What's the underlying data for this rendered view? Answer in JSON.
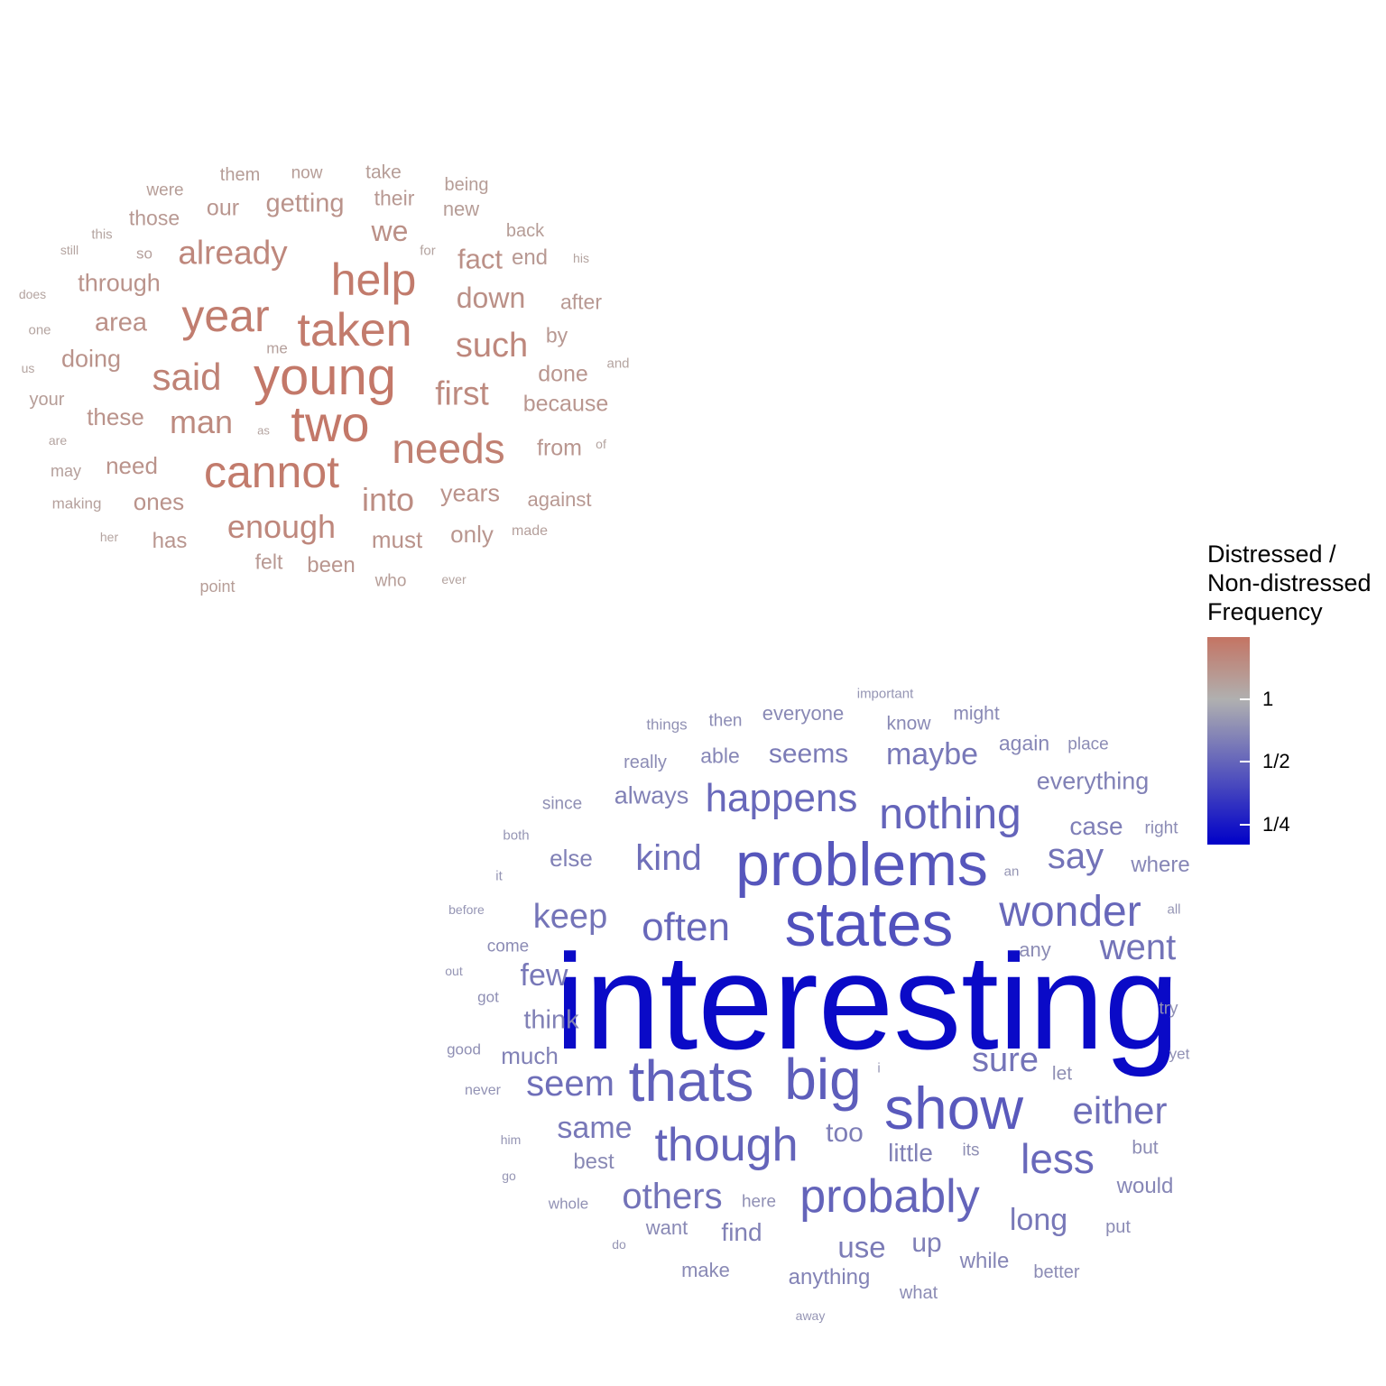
{
  "chart_data": {
    "type": "wordcloud",
    "legend": {
      "title_lines": [
        "Distressed /",
        "Non-distressed",
        "Frequency"
      ],
      "ticks": [
        {
          "label": "1",
          "value": 1
        },
        {
          "label": "1/2",
          "value": 0.5
        },
        {
          "label": "1/4",
          "value": 0.25
        }
      ],
      "range": [
        0.2,
        2.0
      ],
      "scale": "log2",
      "colors": {
        "high": "#c47463",
        "mid": "#b0b0b0",
        "low": "#0000c8"
      },
      "placement": "right"
    },
    "clouds": [
      {
        "group": "distressed",
        "words": [
          {
            "text": "young",
            "ratio": 1.9
          },
          {
            "text": "two",
            "ratio": 1.9
          },
          {
            "text": "cannot",
            "ratio": 1.85
          },
          {
            "text": "taken",
            "ratio": 1.85
          },
          {
            "text": "help",
            "ratio": 1.85
          },
          {
            "text": "year",
            "ratio": 1.8
          },
          {
            "text": "needs",
            "ratio": 1.75
          },
          {
            "text": "said",
            "ratio": 1.7
          },
          {
            "text": "already",
            "ratio": 1.6
          },
          {
            "text": "enough",
            "ratio": 1.6
          },
          {
            "text": "such",
            "ratio": 1.6
          },
          {
            "text": "man",
            "ratio": 1.55
          },
          {
            "text": "first",
            "ratio": 1.55
          },
          {
            "text": "into",
            "ratio": 1.5
          },
          {
            "text": "we",
            "ratio": 1.45
          },
          {
            "text": "fact",
            "ratio": 1.45
          },
          {
            "text": "down",
            "ratio": 1.45
          },
          {
            "text": "area",
            "ratio": 1.45
          },
          {
            "text": "getting",
            "ratio": 1.4
          },
          {
            "text": "through",
            "ratio": 1.4
          },
          {
            "text": "doing",
            "ratio": 1.4
          },
          {
            "text": "these",
            "ratio": 1.4
          },
          {
            "text": "need",
            "ratio": 1.4
          },
          {
            "text": "ones",
            "ratio": 1.4
          },
          {
            "text": "years",
            "ratio": 1.4
          },
          {
            "text": "must",
            "ratio": 1.4
          },
          {
            "text": "only",
            "ratio": 1.35
          },
          {
            "text": "our",
            "ratio": 1.35
          },
          {
            "text": "done",
            "ratio": 1.35
          },
          {
            "text": "because",
            "ratio": 1.35
          },
          {
            "text": "from",
            "ratio": 1.35
          },
          {
            "text": "been",
            "ratio": 1.35
          },
          {
            "text": "has",
            "ratio": 1.35
          },
          {
            "text": "their",
            "ratio": 1.3
          },
          {
            "text": "those",
            "ratio": 1.3
          },
          {
            "text": "end",
            "ratio": 1.3
          },
          {
            "text": "after",
            "ratio": 1.3
          },
          {
            "text": "by",
            "ratio": 1.3
          },
          {
            "text": "felt",
            "ratio": 1.3
          },
          {
            "text": "against",
            "ratio": 1.3
          },
          {
            "text": "take",
            "ratio": 1.25
          },
          {
            "text": "new",
            "ratio": 1.25
          },
          {
            "text": "back",
            "ratio": 1.25
          },
          {
            "text": "being",
            "ratio": 1.25
          },
          {
            "text": "them",
            "ratio": 1.25
          },
          {
            "text": "now",
            "ratio": 1.25
          },
          {
            "text": "were",
            "ratio": 1.25
          },
          {
            "text": "your",
            "ratio": 1.25
          },
          {
            "text": "who",
            "ratio": 1.25
          },
          {
            "text": "point",
            "ratio": 1.25
          },
          {
            "text": "may",
            "ratio": 1.2
          },
          {
            "text": "making",
            "ratio": 1.2
          },
          {
            "text": "me",
            "ratio": 1.2
          },
          {
            "text": "so",
            "ratio": 1.2
          },
          {
            "text": "made",
            "ratio": 1.2
          },
          {
            "text": "for",
            "ratio": 1.15
          },
          {
            "text": "his",
            "ratio": 1.15
          },
          {
            "text": "and",
            "ratio": 1.15
          },
          {
            "text": "of",
            "ratio": 1.15
          },
          {
            "text": "this",
            "ratio": 1.15
          },
          {
            "text": "still",
            "ratio": 1.15
          },
          {
            "text": "does",
            "ratio": 1.15
          },
          {
            "text": "one",
            "ratio": 1.15
          },
          {
            "text": "us",
            "ratio": 1.15
          },
          {
            "text": "are",
            "ratio": 1.15
          },
          {
            "text": "as",
            "ratio": 1.15
          },
          {
            "text": "her",
            "ratio": 1.15
          },
          {
            "text": "ever",
            "ratio": 1.15
          }
        ]
      },
      {
        "group": "non-distressed",
        "words": [
          {
            "text": "interesting",
            "ratio": 0.22
          },
          {
            "text": "states",
            "ratio": 0.42
          },
          {
            "text": "problems",
            "ratio": 0.44
          },
          {
            "text": "show",
            "ratio": 0.45
          },
          {
            "text": "big",
            "ratio": 0.47
          },
          {
            "text": "thats",
            "ratio": 0.48
          },
          {
            "text": "though",
            "ratio": 0.5
          },
          {
            "text": "probably",
            "ratio": 0.5
          },
          {
            "text": "nothing",
            "ratio": 0.5
          },
          {
            "text": "wonder",
            "ratio": 0.52
          },
          {
            "text": "happens",
            "ratio": 0.52
          },
          {
            "text": "often",
            "ratio": 0.52
          },
          {
            "text": "less",
            "ratio": 0.52
          },
          {
            "text": "either",
            "ratio": 0.55
          },
          {
            "text": "kind",
            "ratio": 0.55
          },
          {
            "text": "seem",
            "ratio": 0.55
          },
          {
            "text": "others",
            "ratio": 0.57
          },
          {
            "text": "say",
            "ratio": 0.57
          },
          {
            "text": "went",
            "ratio": 0.57
          },
          {
            "text": "keep",
            "ratio": 0.58
          },
          {
            "text": "sure",
            "ratio": 0.58
          },
          {
            "text": "maybe",
            "ratio": 0.6
          },
          {
            "text": "same",
            "ratio": 0.6
          },
          {
            "text": "long",
            "ratio": 0.6
          },
          {
            "text": "few",
            "ratio": 0.6
          },
          {
            "text": "seems",
            "ratio": 0.62
          },
          {
            "text": "use",
            "ratio": 0.62
          },
          {
            "text": "too",
            "ratio": 0.63
          },
          {
            "text": "case",
            "ratio": 0.64
          },
          {
            "text": "everything",
            "ratio": 0.65
          },
          {
            "text": "up",
            "ratio": 0.64
          },
          {
            "text": "little",
            "ratio": 0.65
          },
          {
            "text": "think",
            "ratio": 0.65
          },
          {
            "text": "always",
            "ratio": 0.65
          },
          {
            "text": "else",
            "ratio": 0.65
          },
          {
            "text": "much",
            "ratio": 0.65
          },
          {
            "text": "find",
            "ratio": 0.65
          },
          {
            "text": "anything",
            "ratio": 0.66
          },
          {
            "text": "where",
            "ratio": 0.68
          },
          {
            "text": "would",
            "ratio": 0.68
          },
          {
            "text": "while",
            "ratio": 0.68
          },
          {
            "text": "again",
            "ratio": 0.68
          },
          {
            "text": "able",
            "ratio": 0.68
          },
          {
            "text": "everyone",
            "ratio": 0.7
          },
          {
            "text": "best",
            "ratio": 0.7
          },
          {
            "text": "want",
            "ratio": 0.7
          },
          {
            "text": "make",
            "ratio": 0.7
          },
          {
            "text": "might",
            "ratio": 0.7
          },
          {
            "text": "know",
            "ratio": 0.7
          },
          {
            "text": "then",
            "ratio": 0.72
          },
          {
            "text": "really",
            "ratio": 0.72
          },
          {
            "text": "any",
            "ratio": 0.72
          },
          {
            "text": "come",
            "ratio": 0.72
          },
          {
            "text": "better",
            "ratio": 0.72
          },
          {
            "text": "put",
            "ratio": 0.72
          },
          {
            "text": "but",
            "ratio": 0.72
          },
          {
            "text": "place",
            "ratio": 0.72
          },
          {
            "text": "right",
            "ratio": 0.72
          },
          {
            "text": "what",
            "ratio": 0.72
          },
          {
            "text": "let",
            "ratio": 0.74
          },
          {
            "text": "try",
            "ratio": 0.74
          },
          {
            "text": "since",
            "ratio": 0.74
          },
          {
            "text": "here",
            "ratio": 0.74
          },
          {
            "text": "its",
            "ratio": 0.74
          },
          {
            "text": "got",
            "ratio": 0.74
          },
          {
            "text": "good",
            "ratio": 0.74
          },
          {
            "text": "whole",
            "ratio": 0.75
          },
          {
            "text": "things",
            "ratio": 0.75
          },
          {
            "text": "yet",
            "ratio": 0.75
          },
          {
            "text": "never",
            "ratio": 0.76
          },
          {
            "text": "important",
            "ratio": 0.78
          },
          {
            "text": "both",
            "ratio": 0.78
          },
          {
            "text": "it",
            "ratio": 0.78
          },
          {
            "text": "an",
            "ratio": 0.78
          },
          {
            "text": "before",
            "ratio": 0.78
          },
          {
            "text": "all",
            "ratio": 0.78
          },
          {
            "text": "out",
            "ratio": 0.78
          },
          {
            "text": "i",
            "ratio": 0.78
          },
          {
            "text": "him",
            "ratio": 0.78
          },
          {
            "text": "go",
            "ratio": 0.78
          },
          {
            "text": "do",
            "ratio": 0.78
          },
          {
            "text": "away",
            "ratio": 0.78
          }
        ]
      }
    ]
  }
}
